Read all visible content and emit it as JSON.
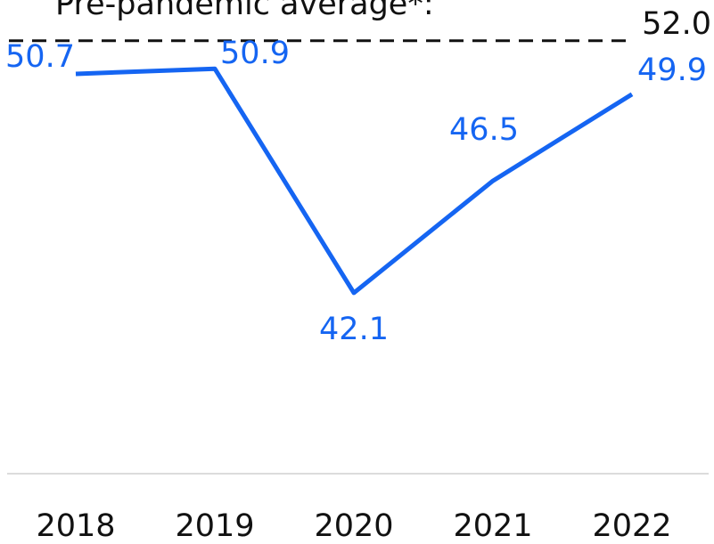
{
  "chart_data": {
    "type": "line",
    "categories": [
      "2018",
      "2019",
      "2020",
      "2021",
      "2022"
    ],
    "series": [
      {
        "name": null,
        "color": "#1565f2",
        "values": [
          50.7,
          50.9,
          42.1,
          46.5,
          49.9
        ]
      }
    ],
    "ylim": [
      35,
      53.6
    ],
    "reference_line": {
      "value": 52,
      "label": "52.0",
      "text": "Pre-pandemic average*:",
      "color": "#111111"
    },
    "baseline_color": "#dcdcdc"
  }
}
